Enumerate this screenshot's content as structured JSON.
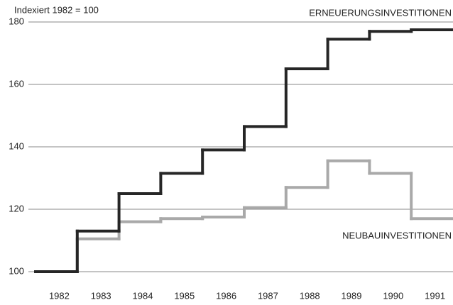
{
  "chart_data": {
    "type": "step",
    "ylabel": "Indexiert 1982 = 100",
    "categories": [
      "1982",
      "1983",
      "1984",
      "1985",
      "1986",
      "1987",
      "1988",
      "1989",
      "1990",
      "1991"
    ],
    "series": [
      {
        "name": "ERNEUERUNGSINVESTITIONEN",
        "color": "#262626",
        "values": [
          100,
          113,
          125,
          131.5,
          139,
          146.5,
          165,
          174.5,
          177,
          177.5
        ]
      },
      {
        "name": "NEUBAUINVESTITIONEN",
        "color": "#a9a9a9",
        "values": [
          100,
          110.5,
          116,
          117,
          117.5,
          120.5,
          127,
          135.5,
          131.5,
          117
        ]
      }
    ],
    "ylim": [
      96,
      184
    ],
    "yticks": [
      100,
      120,
      140,
      160,
      180
    ],
    "grid": true
  }
}
